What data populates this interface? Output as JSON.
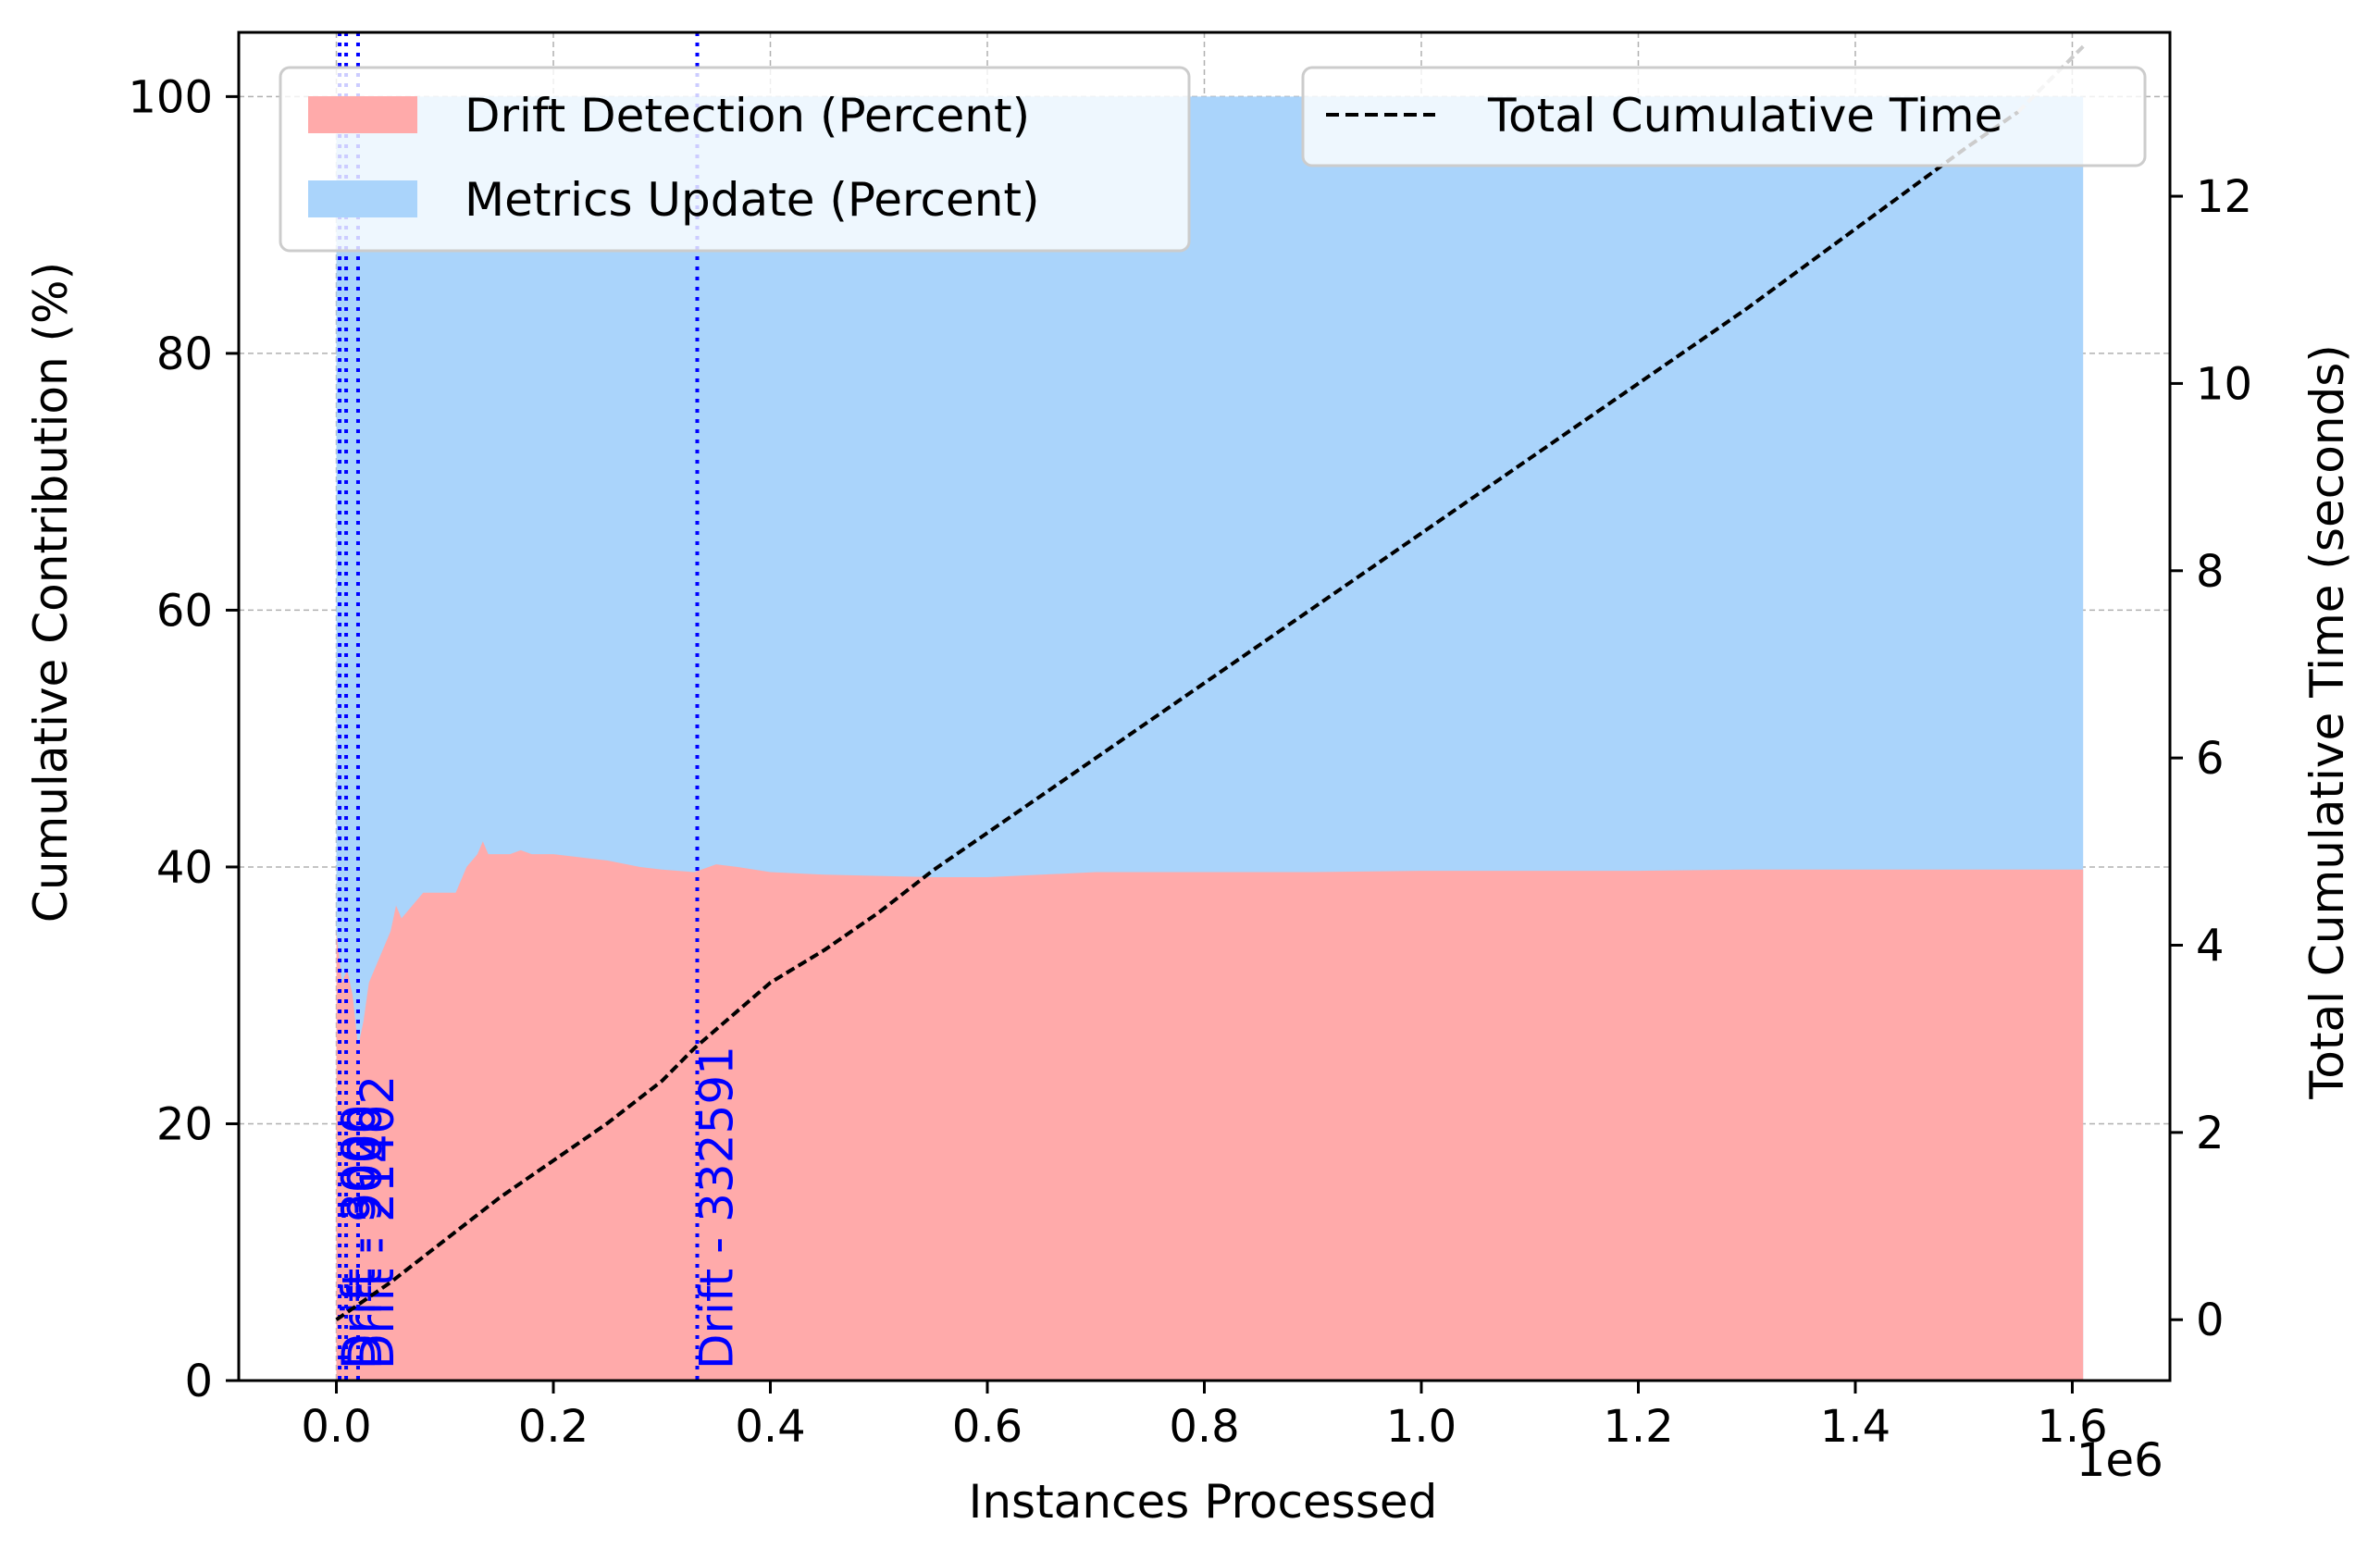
{
  "chart_data": {
    "type": "area",
    "title": "",
    "xlabel": "Instances Processed",
    "x_offset_label": "1e6",
    "ylabel_left": "Cumulative Contribution (%)",
    "ylabel_right": "Total Cumulative Time (seconds)",
    "xlim": [
      -0.09,
      1.69
    ],
    "ylim_left": [
      0,
      105
    ],
    "ylim_right": [
      -0.65,
      13.75
    ],
    "x_ticks": [
      0.0,
      0.2,
      0.4,
      0.6,
      0.8,
      1.0,
      1.2,
      1.4,
      1.6
    ],
    "x_tick_labels": [
      "0.0",
      "0.2",
      "0.4",
      "0.6",
      "0.8",
      "1.0",
      "1.2",
      "1.4",
      "1.6"
    ],
    "y_left_ticks": [
      0,
      20,
      40,
      60,
      80,
      100
    ],
    "y_left_tick_labels": [
      "0",
      "20",
      "40",
      "60",
      "80",
      "100"
    ],
    "y_right_ticks": [
      0,
      2,
      4,
      6,
      8,
      10,
      12
    ],
    "y_right_tick_labels": [
      "0",
      "2",
      "4",
      "6",
      "8",
      "10",
      "12"
    ],
    "grid": true,
    "colors": {
      "drift": "#ffaaaa",
      "metrics": "#aad4fb",
      "total_line": "#000000",
      "drift_lines": "#0000ff"
    },
    "series": [
      {
        "name": "Drift Detection (Percent)",
        "kind": "stacked-area",
        "x": [
          0.0,
          0.005,
          0.01,
          0.015,
          0.02,
          0.025,
          0.03,
          0.04,
          0.05,
          0.055,
          0.06,
          0.07,
          0.08,
          0.09,
          0.1,
          0.11,
          0.12,
          0.13,
          0.135,
          0.14,
          0.15,
          0.16,
          0.17,
          0.18,
          0.2,
          0.22,
          0.25,
          0.28,
          0.3,
          0.33,
          0.35,
          0.37,
          0.4,
          0.45,
          0.5,
          0.55,
          0.6,
          0.7,
          0.8,
          0.9,
          1.0,
          1.1,
          1.2,
          1.3,
          1.4,
          1.5,
          1.61
        ],
        "values": [
          35,
          31,
          32,
          30,
          26,
          28,
          31,
          33,
          35,
          37,
          36,
          37,
          38,
          38,
          38,
          38,
          40,
          41,
          42,
          41,
          41,
          41,
          41.3,
          41,
          41,
          40.8,
          40.5,
          40,
          39.8,
          39.6,
          40.2,
          40,
          39.6,
          39.4,
          39.3,
          39.2,
          39.2,
          39.6,
          39.6,
          39.6,
          39.7,
          39.7,
          39.7,
          39.8,
          39.8,
          39.8,
          39.8
        ]
      },
      {
        "name": "Metrics Update (Percent)",
        "kind": "stacked-area-remainder",
        "x": [
          0.0,
          1.61
        ],
        "values": [
          100,
          100
        ]
      },
      {
        "name": "Total Cumulative Time",
        "kind": "dashed-line",
        "axis": "right",
        "x": [
          0.0,
          0.05,
          0.1,
          0.15,
          0.2,
          0.25,
          0.3,
          0.33,
          0.35,
          0.38,
          0.4,
          0.45,
          0.5,
          0.55,
          0.6,
          0.7,
          0.8,
          0.9,
          1.0,
          1.1,
          1.2,
          1.3,
          1.4,
          1.5,
          1.55
        ],
        "values": [
          0.0,
          0.4,
          0.85,
          1.3,
          1.7,
          2.1,
          2.55,
          2.9,
          3.1,
          3.4,
          3.6,
          3.95,
          4.35,
          4.8,
          5.2,
          6.0,
          6.8,
          7.6,
          8.4,
          9.2,
          10.0,
          10.8,
          11.65,
          12.5,
          12.9
        ]
      }
    ],
    "drift_markers": [
      {
        "x": 0.003,
        "label": "Drift - 3000"
      },
      {
        "x": 0.009,
        "label": "Drift - 9000"
      },
      {
        "x": 0.02,
        "label": "Drift - 21402"
      },
      {
        "x": 0.3326,
        "label": "Drift - 332591"
      }
    ],
    "legend_left_placement": "top-left",
    "legend_right_placement": "top-right"
  }
}
